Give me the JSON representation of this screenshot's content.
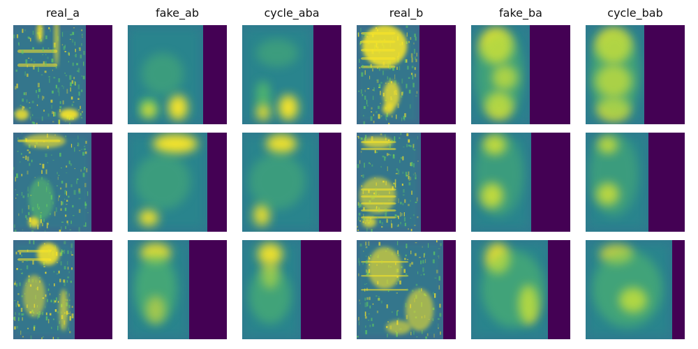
{
  "figure": {
    "columns": [
      {
        "title": "real_a"
      },
      {
        "title": "fake_ab"
      },
      {
        "title": "cycle_aba"
      },
      {
        "title": "real_b"
      },
      {
        "title": "fake_ba"
      },
      {
        "title": "cycle_bab"
      }
    ],
    "rows": 3,
    "colormap": {
      "name": "viridis",
      "padding_color": "#440154",
      "background_color": "#3b528b",
      "mid_color": "#21918c",
      "high_color": "#5ec962",
      "peak_color": "#fde725"
    },
    "panel_kind": "spectrogram"
  }
}
